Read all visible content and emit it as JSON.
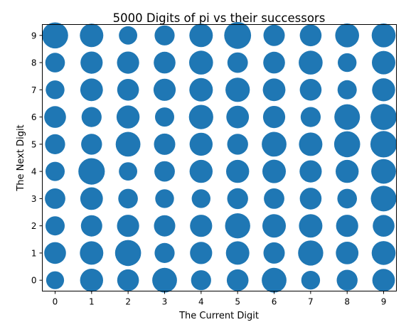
{
  "chart_data": {
    "type": "scatter",
    "title": "5000 Digits of pi vs their successors",
    "xlabel": "The Current Digit",
    "ylabel": "The Next Digit",
    "xlim": [
      -0.35,
      9.35
    ],
    "ylim": [
      -0.4,
      9.4
    ],
    "xticks": [
      "0",
      "1",
      "2",
      "3",
      "4",
      "5",
      "6",
      "7",
      "8",
      "9"
    ],
    "yticks": [
      "0",
      "1",
      "2",
      "3",
      "4",
      "5",
      "6",
      "7",
      "8",
      "9"
    ],
    "marker_color": "#1f77b4",
    "grid": false,
    "points": [
      {
        "x": 0,
        "y": 0,
        "size": 42
      },
      {
        "x": 0,
        "y": 1,
        "size": 51
      },
      {
        "x": 0,
        "y": 2,
        "size": 45
      },
      {
        "x": 0,
        "y": 3,
        "size": 48
      },
      {
        "x": 0,
        "y": 4,
        "size": 45
      },
      {
        "x": 0,
        "y": 5,
        "size": 47
      },
      {
        "x": 0,
        "y": 6,
        "size": 51
      },
      {
        "x": 0,
        "y": 7,
        "size": 44
      },
      {
        "x": 0,
        "y": 8,
        "size": 46
      },
      {
        "x": 0,
        "y": 9,
        "size": 61
      },
      {
        "x": 1,
        "y": 0,
        "size": 54
      },
      {
        "x": 1,
        "y": 1,
        "size": 55
      },
      {
        "x": 1,
        "y": 2,
        "size": 50
      },
      {
        "x": 1,
        "y": 3,
        "size": 53
      },
      {
        "x": 1,
        "y": 4,
        "size": 62
      },
      {
        "x": 1,
        "y": 5,
        "size": 49
      },
      {
        "x": 1,
        "y": 6,
        "size": 47
      },
      {
        "x": 1,
        "y": 7,
        "size": 53
      },
      {
        "x": 1,
        "y": 8,
        "size": 52
      },
      {
        "x": 1,
        "y": 9,
        "size": 55
      },
      {
        "x": 2,
        "y": 0,
        "size": 51
      },
      {
        "x": 2,
        "y": 1,
        "size": 61
      },
      {
        "x": 2,
        "y": 2,
        "size": 52
      },
      {
        "x": 2,
        "y": 3,
        "size": 46
      },
      {
        "x": 2,
        "y": 4,
        "size": 43
      },
      {
        "x": 2,
        "y": 5,
        "size": 58
      },
      {
        "x": 2,
        "y": 6,
        "size": 54
      },
      {
        "x": 2,
        "y": 7,
        "size": 51
      },
      {
        "x": 2,
        "y": 8,
        "size": 52
      },
      {
        "x": 2,
        "y": 9,
        "size": 43
      },
      {
        "x": 3,
        "y": 0,
        "size": 58
      },
      {
        "x": 3,
        "y": 1,
        "size": 47
      },
      {
        "x": 3,
        "y": 2,
        "size": 50
      },
      {
        "x": 3,
        "y": 3,
        "size": 44
      },
      {
        "x": 3,
        "y": 4,
        "size": 48
      },
      {
        "x": 3,
        "y": 5,
        "size": 50
      },
      {
        "x": 3,
        "y": 6,
        "size": 45
      },
      {
        "x": 3,
        "y": 7,
        "size": 52
      },
      {
        "x": 3,
        "y": 8,
        "size": 51
      },
      {
        "x": 3,
        "y": 9,
        "size": 47
      },
      {
        "x": 4,
        "y": 0,
        "size": 47
      },
      {
        "x": 4,
        "y": 1,
        "size": 52
      },
      {
        "x": 4,
        "y": 2,
        "size": 52
      },
      {
        "x": 4,
        "y": 3,
        "size": 44
      },
      {
        "x": 4,
        "y": 4,
        "size": 54
      },
      {
        "x": 4,
        "y": 5,
        "size": 54
      },
      {
        "x": 4,
        "y": 6,
        "size": 57
      },
      {
        "x": 4,
        "y": 7,
        "size": 55
      },
      {
        "x": 4,
        "y": 8,
        "size": 56
      },
      {
        "x": 4,
        "y": 9,
        "size": 55
      },
      {
        "x": 5,
        "y": 0,
        "size": 51
      },
      {
        "x": 5,
        "y": 1,
        "size": 55
      },
      {
        "x": 5,
        "y": 2,
        "size": 59
      },
      {
        "x": 5,
        "y": 3,
        "size": 49
      },
      {
        "x": 5,
        "y": 4,
        "size": 54
      },
      {
        "x": 5,
        "y": 5,
        "size": 49
      },
      {
        "x": 5,
        "y": 6,
        "size": 53
      },
      {
        "x": 5,
        "y": 7,
        "size": 57
      },
      {
        "x": 5,
        "y": 8,
        "size": 48
      },
      {
        "x": 5,
        "y": 9,
        "size": 63
      },
      {
        "x": 6,
        "y": 0,
        "size": 58
      },
      {
        "x": 6,
        "y": 1,
        "size": 50
      },
      {
        "x": 6,
        "y": 2,
        "size": 55
      },
      {
        "x": 6,
        "y": 3,
        "size": 48
      },
      {
        "x": 6,
        "y": 4,
        "size": 55
      },
      {
        "x": 6,
        "y": 5,
        "size": 58
      },
      {
        "x": 6,
        "y": 6,
        "size": 52
      },
      {
        "x": 6,
        "y": 7,
        "size": 53
      },
      {
        "x": 6,
        "y": 8,
        "size": 51
      },
      {
        "x": 6,
        "y": 9,
        "size": 50
      },
      {
        "x": 7,
        "y": 0,
        "size": 44
      },
      {
        "x": 7,
        "y": 1,
        "size": 59
      },
      {
        "x": 7,
        "y": 2,
        "size": 55
      },
      {
        "x": 7,
        "y": 3,
        "size": 51
      },
      {
        "x": 7,
        "y": 4,
        "size": 52
      },
      {
        "x": 7,
        "y": 5,
        "size": 55
      },
      {
        "x": 7,
        "y": 6,
        "size": 47
      },
      {
        "x": 7,
        "y": 7,
        "size": 51
      },
      {
        "x": 7,
        "y": 8,
        "size": 56
      },
      {
        "x": 7,
        "y": 9,
        "size": 51
      },
      {
        "x": 8,
        "y": 0,
        "size": 49
      },
      {
        "x": 8,
        "y": 1,
        "size": 53
      },
      {
        "x": 8,
        "y": 2,
        "size": 52
      },
      {
        "x": 8,
        "y": 3,
        "size": 46
      },
      {
        "x": 8,
        "y": 4,
        "size": 54
      },
      {
        "x": 8,
        "y": 5,
        "size": 61
      },
      {
        "x": 8,
        "y": 6,
        "size": 60
      },
      {
        "x": 8,
        "y": 7,
        "size": 45
      },
      {
        "x": 8,
        "y": 8,
        "size": 44
      },
      {
        "x": 8,
        "y": 9,
        "size": 56
      },
      {
        "x": 9,
        "y": 0,
        "size": 53
      },
      {
        "x": 9,
        "y": 1,
        "size": 56
      },
      {
        "x": 9,
        "y": 2,
        "size": 51
      },
      {
        "x": 9,
        "y": 3,
        "size": 60
      },
      {
        "x": 9,
        "y": 4,
        "size": 58
      },
      {
        "x": 9,
        "y": 5,
        "size": 62
      },
      {
        "x": 9,
        "y": 6,
        "size": 61
      },
      {
        "x": 9,
        "y": 7,
        "size": 54
      },
      {
        "x": 9,
        "y": 8,
        "size": 55
      },
      {
        "x": 9,
        "y": 9,
        "size": 56
      }
    ]
  }
}
